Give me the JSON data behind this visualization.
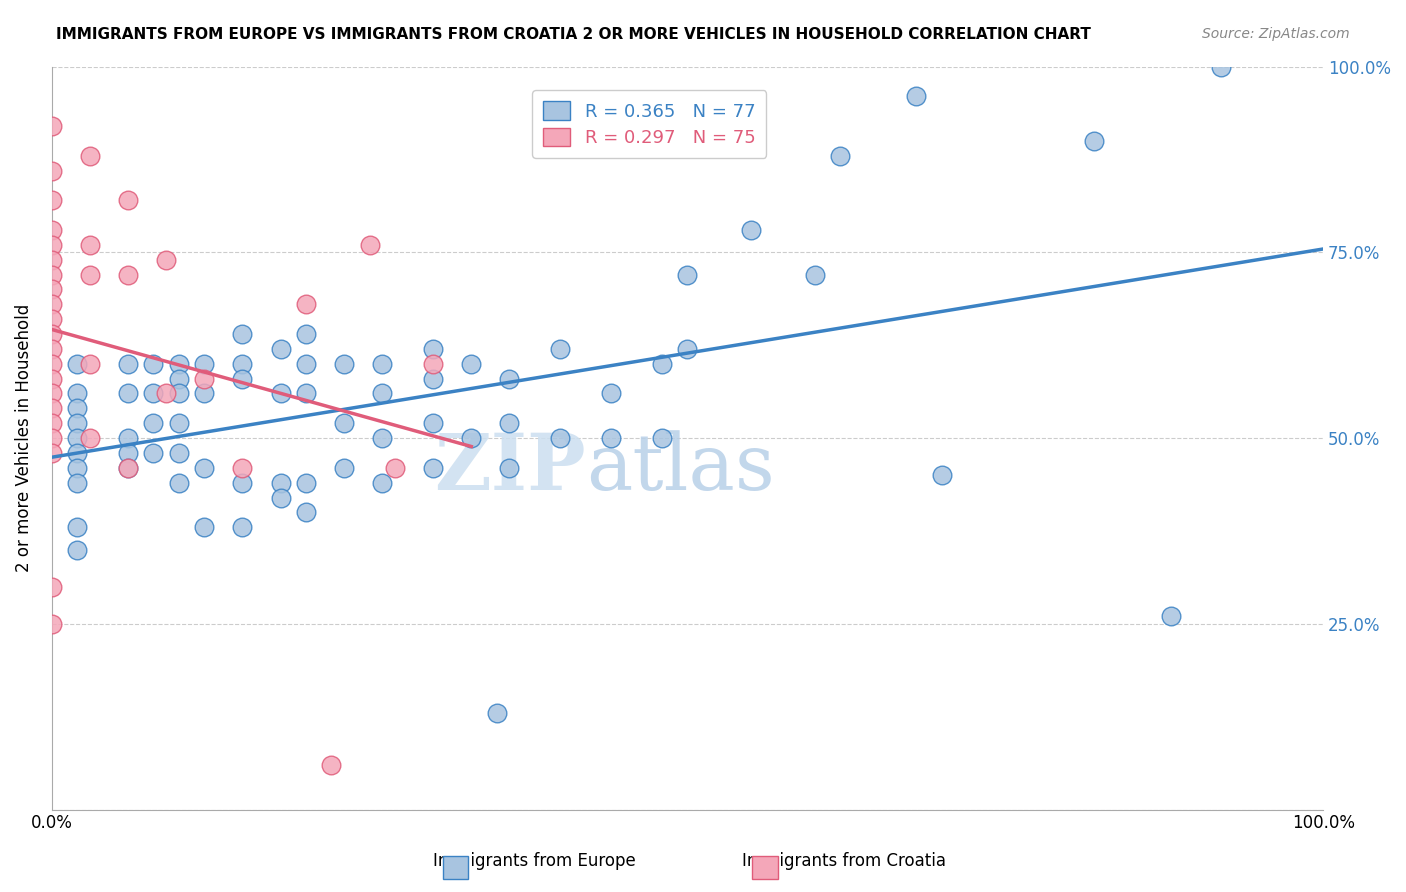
{
  "title": "IMMIGRANTS FROM EUROPE VS IMMIGRANTS FROM CROATIA 2 OR MORE VEHICLES IN HOUSEHOLD CORRELATION CHART",
  "source": "Source: ZipAtlas.com",
  "ylabel": "2 or more Vehicles in Household",
  "xlim": [
    0.0,
    1.0
  ],
  "ylim": [
    0.0,
    1.0
  ],
  "legend_label1": "Immigrants from Europe",
  "legend_label2": "Immigrants from Croatia",
  "r1": 0.365,
  "n1": 77,
  "r2": 0.297,
  "n2": 75,
  "color_blue": "#a8c4e0",
  "color_pink": "#f4a7b9",
  "line_color_blue": "#3b82c4",
  "line_color_pink": "#e05c7a",
  "watermark_zip": "ZIP",
  "watermark_atlas": "atlas",
  "blue_x": [
    0.02,
    0.02,
    0.02,
    0.02,
    0.02,
    0.02,
    0.02,
    0.02,
    0.02,
    0.02,
    0.06,
    0.06,
    0.06,
    0.06,
    0.06,
    0.08,
    0.08,
    0.08,
    0.08,
    0.1,
    0.1,
    0.1,
    0.1,
    0.1,
    0.1,
    0.12,
    0.12,
    0.12,
    0.12,
    0.15,
    0.15,
    0.15,
    0.15,
    0.15,
    0.18,
    0.18,
    0.18,
    0.18,
    0.2,
    0.2,
    0.2,
    0.2,
    0.2,
    0.23,
    0.23,
    0.23,
    0.26,
    0.26,
    0.26,
    0.26,
    0.3,
    0.3,
    0.3,
    0.3,
    0.33,
    0.33,
    0.36,
    0.36,
    0.36,
    0.4,
    0.4,
    0.44,
    0.44,
    0.48,
    0.48,
    0.5,
    0.5,
    0.55,
    0.6,
    0.62,
    0.68,
    0.7,
    0.82,
    0.88,
    0.92,
    0.35
  ],
  "blue_y": [
    0.6,
    0.56,
    0.54,
    0.52,
    0.5,
    0.48,
    0.46,
    0.44,
    0.38,
    0.35,
    0.6,
    0.56,
    0.5,
    0.48,
    0.46,
    0.6,
    0.56,
    0.52,
    0.48,
    0.6,
    0.58,
    0.56,
    0.52,
    0.48,
    0.44,
    0.6,
    0.56,
    0.46,
    0.38,
    0.64,
    0.6,
    0.58,
    0.44,
    0.38,
    0.62,
    0.56,
    0.44,
    0.42,
    0.64,
    0.6,
    0.56,
    0.44,
    0.4,
    0.6,
    0.52,
    0.46,
    0.6,
    0.56,
    0.5,
    0.44,
    0.62,
    0.58,
    0.52,
    0.46,
    0.6,
    0.5,
    0.58,
    0.52,
    0.46,
    0.62,
    0.5,
    0.56,
    0.5,
    0.6,
    0.5,
    0.72,
    0.62,
    0.78,
    0.72,
    0.88,
    0.96,
    0.45,
    0.9,
    0.26,
    1.0,
    0.13
  ],
  "pink_x": [
    0.0,
    0.0,
    0.0,
    0.0,
    0.0,
    0.0,
    0.0,
    0.0,
    0.0,
    0.0,
    0.0,
    0.0,
    0.0,
    0.0,
    0.0,
    0.0,
    0.0,
    0.0,
    0.0,
    0.0,
    0.0,
    0.03,
    0.03,
    0.03,
    0.03,
    0.03,
    0.06,
    0.06,
    0.06,
    0.09,
    0.09,
    0.12,
    0.15,
    0.2,
    0.22,
    0.25,
    0.27,
    0.3
  ],
  "pink_y": [
    0.92,
    0.86,
    0.82,
    0.78,
    0.76,
    0.74,
    0.72,
    0.7,
    0.68,
    0.66,
    0.64,
    0.62,
    0.6,
    0.58,
    0.56,
    0.54,
    0.52,
    0.5,
    0.48,
    0.3,
    0.25,
    0.88,
    0.76,
    0.72,
    0.6,
    0.5,
    0.82,
    0.72,
    0.46,
    0.74,
    0.56,
    0.58,
    0.46,
    0.68,
    0.06,
    0.76,
    0.46,
    0.6
  ]
}
